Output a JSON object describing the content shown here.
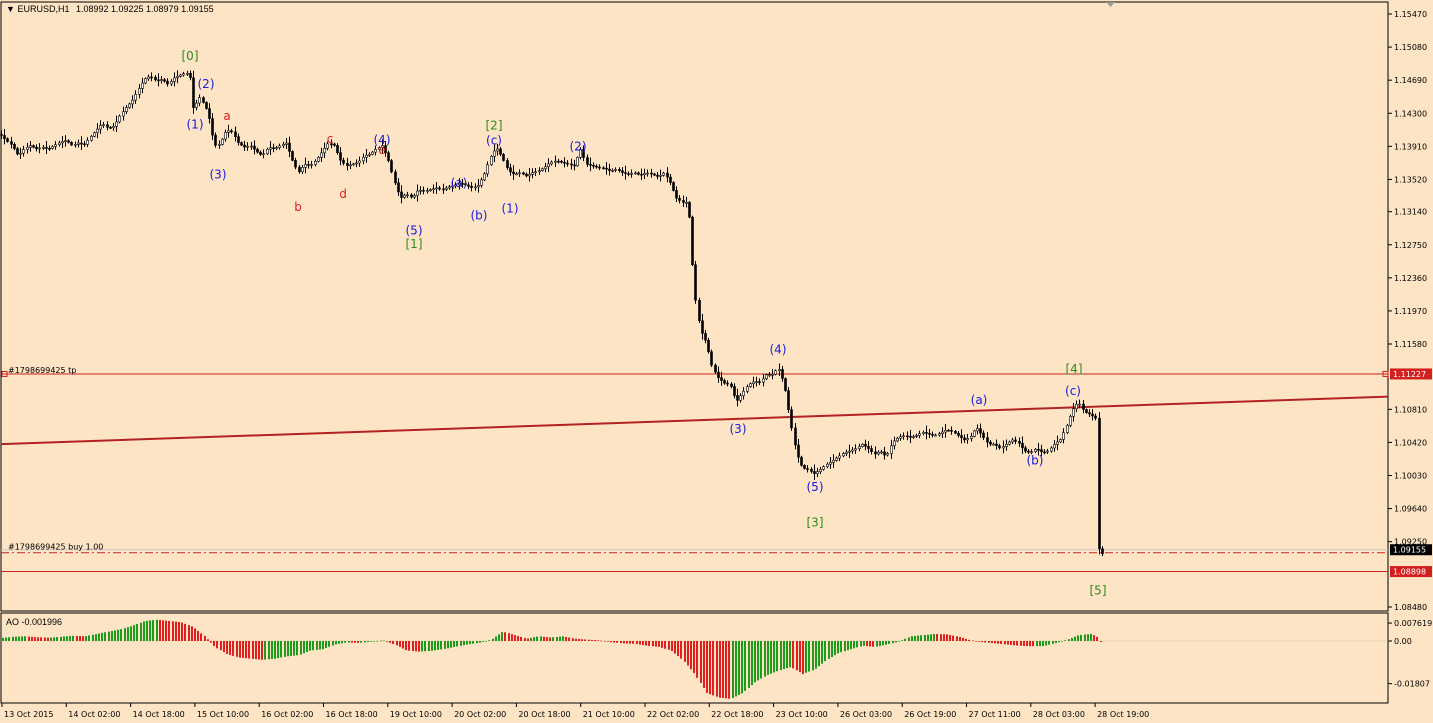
{
  "header": {
    "symbol": "EURUSD,H1",
    "ohlc": "1.08992 1.09225 1.08979 1.09155"
  },
  "oscillator": {
    "label": "AO -0.001996"
  },
  "colors": {
    "background": "#FCE4C4",
    "candle": "#000000",
    "wave_blue": "#1A1AE0",
    "wave_green": "#2E8B1E",
    "wave_red": "#DD2020",
    "trade_line": "#D02020",
    "trendline": "#B22222",
    "ao_up": "#1E9B1E",
    "ao_down": "#E02020"
  },
  "chart_data": {
    "type": "candlestick",
    "symbol": "EURUSD",
    "timeframe": "H1",
    "y_range": [
      1.0848,
      1.1547
    ],
    "price_ticks": [
      "1.15470",
      "1.15080",
      "1.14690",
      "1.14300",
      "1.13910",
      "1.13520",
      "1.13140",
      "1.12750",
      "1.12360",
      "1.11970",
      "1.11580",
      "1.10810",
      "1.10420",
      "1.10030",
      "1.09640",
      "1.09250",
      "1.08480"
    ],
    "time_labels": [
      "13 Oct 2015",
      "14 Oct 02:00",
      "14 Oct 18:00",
      "15 Oct 10:00",
      "16 Oct 02:00",
      "16 Oct 18:00",
      "19 Oct 10:00",
      "20 Oct 02:00",
      "20 Oct 18:00",
      "21 Oct 10:00",
      "22 Oct 02:00",
      "22 Oct 18:00",
      "23 Oct 10:00",
      "26 Oct 03:00",
      "26 Oct 19:00",
      "27 Oct 11:00",
      "28 Oct 03:00",
      "28 Oct 19:00"
    ],
    "current_price": "1.09155",
    "take_profit": {
      "label": "#1798699425 tp",
      "price": "1.11227"
    },
    "order": {
      "label": "#1798699425 buy 1.00",
      "price": 1.0912
    },
    "stop_loss": {
      "price": "1.08898"
    },
    "trendline": [
      1.104,
      1.1096
    ],
    "path": [
      [
        0,
        1.1405
      ],
      [
        6,
        1.1398
      ],
      [
        12,
        1.1392
      ],
      [
        18,
        1.138
      ],
      [
        24,
        1.1388
      ],
      [
        30,
        1.1392
      ],
      [
        36,
        1.1388
      ],
      [
        42,
        1.139
      ],
      [
        48,
        1.1388
      ],
      [
        54,
        1.1392
      ],
      [
        60,
        1.1396
      ],
      [
        66,
        1.1398
      ],
      [
        72,
        1.1392
      ],
      [
        78,
        1.1395
      ],
      [
        84,
        1.1393
      ],
      [
        90,
        1.1402
      ],
      [
        96,
        1.141
      ],
      [
        102,
        1.1418
      ],
      [
        108,
        1.1412
      ],
      [
        114,
        1.1415
      ],
      [
        120,
        1.1428
      ],
      [
        126,
        1.1437
      ],
      [
        132,
        1.1445
      ],
      [
        138,
        1.1458
      ],
      [
        144,
        1.147
      ],
      [
        150,
        1.1474
      ],
      [
        156,
        1.1468
      ],
      [
        162,
        1.147
      ],
      [
        168,
        1.1464
      ],
      [
        174,
        1.1472
      ],
      [
        180,
        1.1475
      ],
      [
        186,
        1.1478
      ],
      [
        191,
        1.147
      ],
      [
        194,
        1.142
      ],
      [
        197,
        1.145
      ],
      [
        200,
        1.1448
      ],
      [
        204,
        1.144
      ],
      [
        208,
        1.143
      ],
      [
        212,
        1.1405
      ],
      [
        216,
        1.139
      ],
      [
        220,
        1.1395
      ],
      [
        226,
        1.141
      ],
      [
        232,
        1.1408
      ],
      [
        238,
        1.1395
      ],
      [
        244,
        1.139
      ],
      [
        250,
        1.1392
      ],
      [
        256,
        1.1385
      ],
      [
        262,
        1.138
      ],
      [
        268,
        1.139
      ],
      [
        274,
        1.1388
      ],
      [
        280,
        1.1392
      ],
      [
        286,
        1.1395
      ],
      [
        292,
        1.1375
      ],
      [
        298,
        1.136
      ],
      [
        304,
        1.137
      ],
      [
        310,
        1.1368
      ],
      [
        316,
        1.1375
      ],
      [
        322,
        1.1385
      ],
      [
        328,
        1.1395
      ],
      [
        334,
        1.1392
      ],
      [
        340,
        1.1375
      ],
      [
        346,
        1.1368
      ],
      [
        352,
        1.137
      ],
      [
        358,
        1.1372
      ],
      [
        364,
        1.138
      ],
      [
        370,
        1.1382
      ],
      [
        376,
        1.1388
      ],
      [
        382,
        1.1392
      ],
      [
        388,
        1.1375
      ],
      [
        394,
        1.135
      ],
      [
        400,
        1.133
      ],
      [
        406,
        1.1335
      ],
      [
        412,
        1.133
      ],
      [
        418,
        1.134
      ],
      [
        424,
        1.1338
      ],
      [
        430,
        1.134
      ],
      [
        436,
        1.1342
      ],
      [
        442,
        1.134
      ],
      [
        448,
        1.1343
      ],
      [
        454,
        1.1345
      ],
      [
        460,
        1.1348
      ],
      [
        466,
        1.1345
      ],
      [
        472,
        1.1342
      ],
      [
        478,
        1.1345
      ],
      [
        484,
        1.1358
      ],
      [
        490,
        1.1378
      ],
      [
        496,
        1.139
      ],
      [
        502,
        1.1378
      ],
      [
        508,
        1.1362
      ],
      [
        514,
        1.1358
      ],
      [
        520,
        1.136
      ],
      [
        526,
        1.1356
      ],
      [
        532,
        1.136
      ],
      [
        538,
        1.1362
      ],
      [
        544,
        1.1366
      ],
      [
        550,
        1.1372
      ],
      [
        556,
        1.1374
      ],
      [
        562,
        1.1372
      ],
      [
        568,
        1.137
      ],
      [
        574,
        1.1368
      ],
      [
        580,
        1.1388
      ],
      [
        586,
        1.137
      ],
      [
        592,
        1.1368
      ],
      [
        598,
        1.1366
      ],
      [
        604,
        1.1365
      ],
      [
        610,
        1.1362
      ],
      [
        616,
        1.1364
      ],
      [
        622,
        1.136
      ],
      [
        628,
        1.1358
      ],
      [
        634,
        1.136
      ],
      [
        640,
        1.1357
      ],
      [
        646,
        1.136
      ],
      [
        652,
        1.1358
      ],
      [
        658,
        1.1355
      ],
      [
        664,
        1.136
      ],
      [
        670,
        1.1348
      ],
      [
        676,
        1.133
      ],
      [
        682,
        1.1325
      ],
      [
        688,
        1.1325
      ],
      [
        694,
        1.122
      ],
      [
        700,
        1.1175
      ],
      [
        706,
        1.116
      ],
      [
        712,
        1.113
      ],
      [
        718,
        1.1118
      ],
      [
        724,
        1.1112
      ],
      [
        730,
        1.111
      ],
      [
        736,
        1.109
      ],
      [
        742,
        1.11
      ],
      [
        748,
        1.111
      ],
      [
        754,
        1.1114
      ],
      [
        760,
        1.1113
      ],
      [
        766,
        1.1122
      ],
      [
        772,
        1.1122
      ],
      [
        778,
        1.113
      ],
      [
        784,
        1.111
      ],
      [
        790,
        1.1068
      ],
      [
        796,
        1.103
      ],
      [
        802,
        1.1012
      ],
      [
        808,
        1.101
      ],
      [
        814,
        1.1005
      ],
      [
        820,
        1.101
      ],
      [
        826,
        1.1016
      ],
      [
        832,
        1.102
      ],
      [
        838,
        1.1025
      ],
      [
        844,
        1.103
      ],
      [
        850,
        1.1032
      ],
      [
        856,
        1.1035
      ],
      [
        862,
        1.104
      ],
      [
        868,
        1.1035
      ],
      [
        874,
        1.1028
      ],
      [
        880,
        1.1032
      ],
      [
        886,
        1.1025
      ],
      [
        892,
        1.1042
      ],
      [
        898,
        1.1048
      ],
      [
        904,
        1.105
      ],
      [
        910,
        1.1048
      ],
      [
        916,
        1.105
      ],
      [
        922,
        1.1054
      ],
      [
        928,
        1.1052
      ],
      [
        934,
        1.105
      ],
      [
        940,
        1.1053
      ],
      [
        946,
        1.1057
      ],
      [
        952,
        1.1055
      ],
      [
        958,
        1.105
      ],
      [
        964,
        1.1045
      ],
      [
        970,
        1.1048
      ],
      [
        976,
        1.106
      ],
      [
        982,
        1.105
      ],
      [
        988,
        1.104
      ],
      [
        994,
        1.104
      ],
      [
        1000,
        1.1035
      ],
      [
        1006,
        1.104
      ],
      [
        1012,
        1.1045
      ],
      [
        1018,
        1.1042
      ],
      [
        1024,
        1.1032
      ],
      [
        1030,
        1.103
      ],
      [
        1036,
        1.1035
      ],
      [
        1042,
        1.103
      ],
      [
        1048,
        1.1032
      ],
      [
        1054,
        1.104
      ],
      [
        1060,
        1.1045
      ],
      [
        1066,
        1.106
      ],
      [
        1072,
        1.108
      ],
      [
        1078,
        1.109
      ],
      [
        1084,
        1.1078
      ],
      [
        1090,
        1.1075
      ],
      [
        1096,
        1.107
      ],
      [
        1099,
        1.0893
      ],
      [
        1102,
        1.0912
      ]
    ],
    "ao": [
      [
        0,
        1.2
      ],
      [
        12,
        1.8
      ],
      [
        24,
        2.0
      ],
      [
        36,
        1.6
      ],
      [
        48,
        1.4
      ],
      [
        60,
        1.8
      ],
      [
        72,
        2.2
      ],
      [
        84,
        2.0
      ],
      [
        96,
        3.0
      ],
      [
        108,
        4.0
      ],
      [
        120,
        5.0
      ],
      [
        132,
        6.5
      ],
      [
        144,
        8.5
      ],
      [
        156,
        9.0
      ],
      [
        168,
        8.5
      ],
      [
        180,
        8.0
      ],
      [
        192,
        6.0
      ],
      [
        204,
        2.0
      ],
      [
        214,
        -2.5
      ],
      [
        226,
        -5.5
      ],
      [
        238,
        -7.0
      ],
      [
        250,
        -7.5
      ],
      [
        262,
        -8.0
      ],
      [
        274,
        -7.5
      ],
      [
        286,
        -6.5
      ],
      [
        298,
        -6.0
      ],
      [
        310,
        -4.0
      ],
      [
        322,
        -3.5
      ],
      [
        334,
        -1.5
      ],
      [
        346,
        -0.6
      ],
      [
        358,
        -0.8
      ],
      [
        370,
        -0.3
      ],
      [
        382,
        0.3
      ],
      [
        394,
        -1.5
      ],
      [
        406,
        -4.0
      ],
      [
        418,
        -4.5
      ],
      [
        430,
        -4.2
      ],
      [
        442,
        -3.5
      ],
      [
        454,
        -2.5
      ],
      [
        466,
        -1.5
      ],
      [
        478,
        -0.8
      ],
      [
        490,
        0.5
      ],
      [
        502,
        4.0
      ],
      [
        514,
        2.5
      ],
      [
        526,
        1.0
      ],
      [
        538,
        2.0
      ],
      [
        550,
        1.5
      ],
      [
        562,
        2.0
      ],
      [
        574,
        1.0
      ],
      [
        586,
        0.6
      ],
      [
        598,
        0.3
      ],
      [
        610,
        -0.5
      ],
      [
        622,
        -1.0
      ],
      [
        634,
        -1.2
      ],
      [
        646,
        -2.0
      ],
      [
        658,
        -2.5
      ],
      [
        670,
        -4.0
      ],
      [
        682,
        -8.0
      ],
      [
        694,
        -14.0
      ],
      [
        706,
        -22.0
      ],
      [
        718,
        -24.0
      ],
      [
        730,
        -24.5
      ],
      [
        742,
        -22.0
      ],
      [
        754,
        -17.5
      ],
      [
        766,
        -14.5
      ],
      [
        778,
        -12.5
      ],
      [
        790,
        -11.0
      ],
      [
        802,
        -14.0
      ],
      [
        814,
        -12.0
      ],
      [
        826,
        -8.0
      ],
      [
        838,
        -5.0
      ],
      [
        850,
        -3.5
      ],
      [
        862,
        -2.0
      ],
      [
        874,
        -2.5
      ],
      [
        886,
        -1.5
      ],
      [
        898,
        -0.3
      ],
      [
        910,
        2.0
      ],
      [
        922,
        2.5
      ],
      [
        934,
        3.0
      ],
      [
        946,
        2.8
      ],
      [
        958,
        1.8
      ],
      [
        970,
        0.3
      ],
      [
        982,
        -0.5
      ],
      [
        994,
        -1.0
      ],
      [
        1006,
        -1.5
      ],
      [
        1018,
        -2.0
      ],
      [
        1030,
        -2.2
      ],
      [
        1042,
        -2.2
      ],
      [
        1054,
        -1.0
      ],
      [
        1066,
        0.5
      ],
      [
        1078,
        2.5
      ],
      [
        1090,
        3.0
      ],
      [
        1096,
        2.0
      ],
      [
        1102,
        -2.0
      ]
    ],
    "ao_ticks": [
      "0.007619",
      "0.00",
      "-0.01807"
    ],
    "wave_labels": [
      {
        "text": "[0]",
        "x": 190,
        "price": 1.1493,
        "color": "green"
      },
      {
        "text": "(2)",
        "x": 206,
        "price": 1.146,
        "color": "blue"
      },
      {
        "text": "(1)",
        "x": 195,
        "price": 1.1412,
        "color": "blue"
      },
      {
        "text": "a",
        "x": 227,
        "price": 1.1422,
        "color": "red"
      },
      {
        "text": "(3)",
        "x": 218,
        "price": 1.1353,
        "color": "blue"
      },
      {
        "text": "c",
        "x": 330,
        "price": 1.1395,
        "color": "red"
      },
      {
        "text": "(4)",
        "x": 382,
        "price": 1.1394,
        "color": "blue"
      },
      {
        "text": "e",
        "x": 382,
        "price": 1.1382,
        "color": "red"
      },
      {
        "text": "b",
        "x": 298,
        "price": 1.1315,
        "color": "red"
      },
      {
        "text": "d",
        "x": 343,
        "price": 1.133,
        "color": "red"
      },
      {
        "text": "(a)",
        "x": 459,
        "price": 1.1343,
        "color": "blue"
      },
      {
        "text": "[2]",
        "x": 494,
        "price": 1.1411,
        "color": "green"
      },
      {
        "text": "(c)",
        "x": 494,
        "price": 1.1393,
        "color": "blue"
      },
      {
        "text": "(2)",
        "x": 578,
        "price": 1.1386,
        "color": "blue"
      },
      {
        "text": "(b)",
        "x": 479,
        "price": 1.1305,
        "color": "blue"
      },
      {
        "text": "(1)",
        "x": 510,
        "price": 1.1313,
        "color": "blue"
      },
      {
        "text": "(5)",
        "x": 414,
        "price": 1.1287,
        "color": "blue"
      },
      {
        "text": "[1]",
        "x": 414,
        "price": 1.1271,
        "color": "green"
      },
      {
        "text": "(4)",
        "x": 778,
        "price": 1.1147,
        "color": "blue"
      },
      {
        "text": "(3)",
        "x": 738,
        "price": 1.1053,
        "color": "blue"
      },
      {
        "text": "(5)",
        "x": 815,
        "price": 1.0985,
        "color": "blue"
      },
      {
        "text": "[3]",
        "x": 815,
        "price": 1.0943,
        "color": "green"
      },
      {
        "text": "(a)",
        "x": 979,
        "price": 1.1087,
        "color": "blue"
      },
      {
        "text": "(b)",
        "x": 1035,
        "price": 1.1016,
        "color": "blue"
      },
      {
        "text": "[4]",
        "x": 1074,
        "price": 1.1124,
        "color": "green"
      },
      {
        "text": "(c)",
        "x": 1073,
        "price": 1.1098,
        "color": "blue"
      },
      {
        "text": "[5]",
        "x": 1098,
        "price": 1.0863,
        "color": "green"
      }
    ]
  }
}
